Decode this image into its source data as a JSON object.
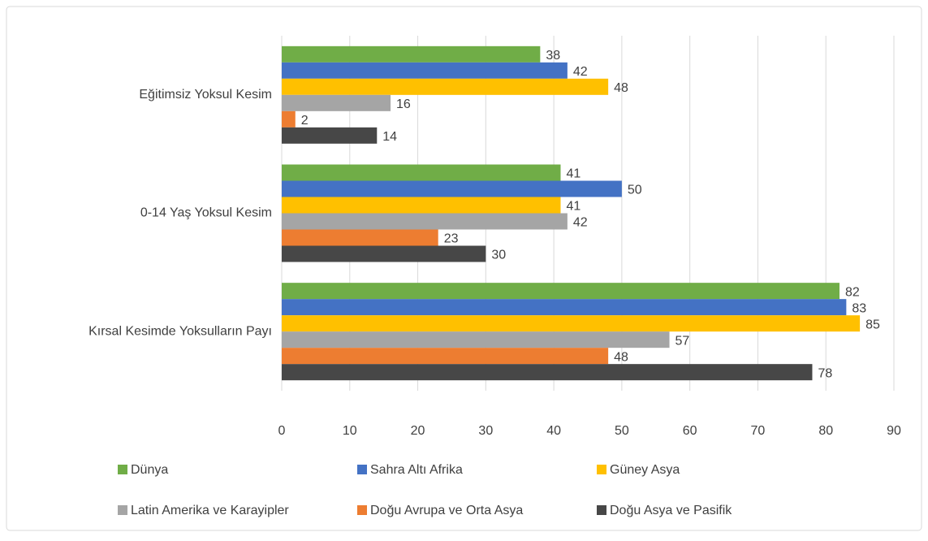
{
  "chart_data": {
    "type": "bar",
    "orientation": "horizontal",
    "categories": [
      "Eğitimsiz Yoksul Kesim",
      "0-14 Yaş Yoksul Kesim",
      "Kırsal Kesimde Yoksulların Payı"
    ],
    "series": [
      {
        "name": "Dünya",
        "color": "#70ad47",
        "values": [
          38,
          41,
          82
        ]
      },
      {
        "name": "Sahra Altı Afrika",
        "color": "#4472c4",
        "values": [
          42,
          50,
          83
        ]
      },
      {
        "name": "Güney Asya",
        "color": "#ffc000",
        "values": [
          48,
          41,
          85
        ]
      },
      {
        "name": "Latin Amerika ve Karayipler",
        "color": "#a5a5a5",
        "values": [
          16,
          42,
          57
        ]
      },
      {
        "name": "Doğu Avrupa ve Orta Asya",
        "color": "#ed7d31",
        "values": [
          2,
          23,
          48
        ]
      },
      {
        "name": "Doğu Asya ve Pasifik",
        "color": "#474747",
        "values": [
          14,
          30,
          78
        ]
      }
    ],
    "xlim": [
      0,
      90
    ],
    "xticks": [
      0,
      10,
      20,
      30,
      40,
      50,
      60,
      70,
      80,
      90
    ],
    "grid": true,
    "legend": "bottom",
    "data_labels": true
  }
}
